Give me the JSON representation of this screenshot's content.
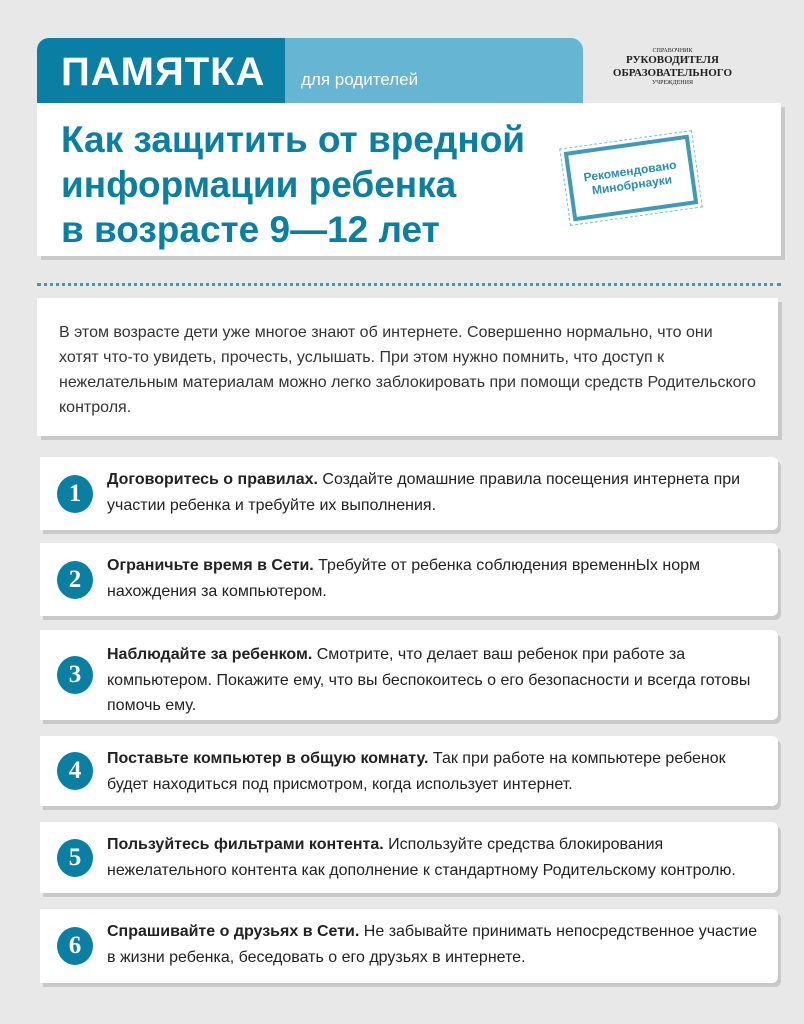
{
  "header": {
    "tab_title": "ПАМЯТКА",
    "tab_subtitle": "для родителей",
    "logo": {
      "line1": "СПРАВОЧНИК",
      "line2": "РУКОВОДИТЕЛЯ",
      "line3": "ОБРАЗОВАТЕЛЬНОГО",
      "line4": "УЧРЕЖДЕНИЯ"
    },
    "title_lines": [
      "Как защитить от вредной",
      "информации ребенка",
      "в возрасте 9—12 лет"
    ],
    "stamp": [
      "Рекомендовано",
      "Минобрнауки"
    ]
  },
  "intro": "В этом возрасте дети уже многое знают об интернете. Совершенно нормально, что они хотят что-то увидеть, прочесть, услышать. При этом нужно помнить, что доступ к нежелательным материалам можно легко заблокировать при помощи средств Родительского контроля.",
  "colors": {
    "accent": "#0a7fa4",
    "accent_light": "#65b5d3",
    "background": "#e8e8e8"
  },
  "items": [
    {
      "num": "1",
      "bold": "Договоритесь о правилах.",
      "text": " Создайте домашние правила посещения интернета при участии ребенка и требуйте их выполнения."
    },
    {
      "num": "2",
      "bold": "Ограничьте время в Сети.",
      "text": " Требуйте от ребенка соблюдения временнЫх норм нахождения за компьютером."
    },
    {
      "num": "3",
      "bold": "Наблюдайте за ребенком.",
      "text": " Смотрите, что делает ваш ребенок при работе за компьютером. Покажите ему, что вы беспокоитесь о его безопасности и всегда готовы помочь ему."
    },
    {
      "num": "4",
      "bold": "Поставьте компьютер в общую комнату.",
      "text": " Так при работе на компьютере ребенок будет находиться под присмотром, когда использует интернет."
    },
    {
      "num": "5",
      "bold": "Пользуйтесь фильтрами контента.",
      "text": " Используйте средства блокирования нежелательного контента как дополнение к стандартному Родительскому контролю."
    },
    {
      "num": "6",
      "bold": "Спрашивайте о друзьях в Сети.",
      "text": " Не забывайте принимать непосредственное участие в жизни ребенка, беседовать о его друзьях в интернете."
    }
  ]
}
